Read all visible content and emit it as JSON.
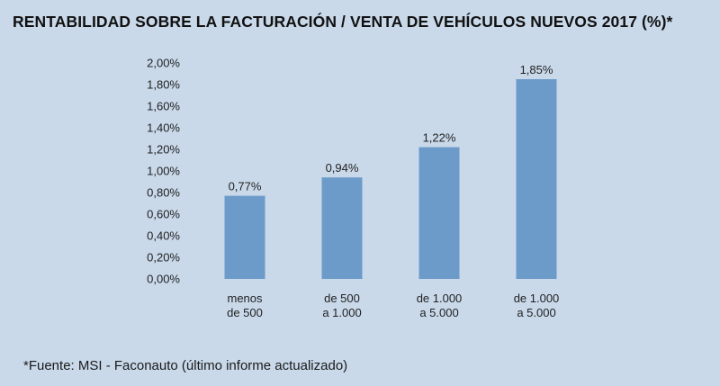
{
  "title": "RENTABILIDAD SOBRE LA FACTURACIÓN / VENTA DE VEHÍCULOS NUEVOS 2017 (%)*",
  "source": "*Fuente: MSI - Faconauto (último informe actualizado)",
  "colors": {
    "background": "#c9d9ea",
    "bar": "#6c9bc9"
  },
  "chart_data": {
    "type": "bar",
    "title": "RENTABILIDAD SOBRE LA FACTURACIÓN / VENTA DE VEHÍCULOS NUEVOS 2017 (%)*",
    "xlabel": "",
    "ylabel": "",
    "categories": [
      [
        "menos",
        "de 500"
      ],
      [
        "de 500",
        "a 1.000"
      ],
      [
        "de 1.000",
        "a 5.000"
      ],
      [
        "de 1.000",
        "a 5.000"
      ]
    ],
    "values": [
      0.77,
      0.94,
      1.22,
      1.85
    ],
    "value_labels": [
      "0,77%",
      "0,94%",
      "1,22%",
      "1,85%"
    ],
    "ylim": [
      0,
      2.0
    ],
    "yticks": [
      0,
      0.2,
      0.4,
      0.6,
      0.8,
      1.0,
      1.2,
      1.4,
      1.6,
      1.8,
      2.0
    ],
    "ytick_labels": [
      "0,00%",
      "0,20%",
      "0,40%",
      "0,60%",
      "0,80%",
      "1,00%",
      "1,20%",
      "1,40%",
      "1,60%",
      "1,80%",
      "2,00%"
    ],
    "grid": false,
    "legend": "none"
  }
}
